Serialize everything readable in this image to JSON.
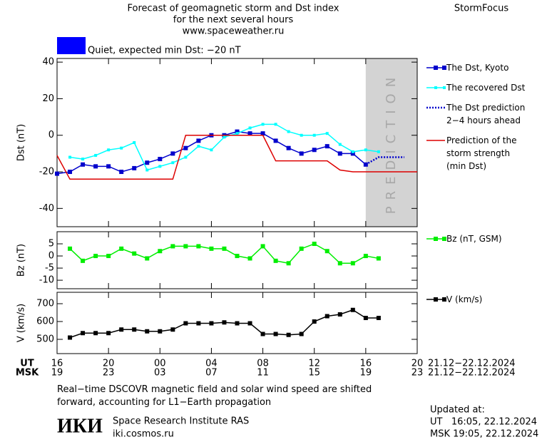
{
  "header": {
    "title_lines": [
      "Forecast of geomagnetic storm and Dst index",
      "for the next several hours",
      "www.spaceweather.ru"
    ],
    "brand": "StormFocus",
    "status": {
      "color": "#0000ff",
      "text": "Quiet, expected min Dst: −20 nT"
    }
  },
  "chart_data": [
    {
      "type": "line",
      "ylabel": "Dst (nT)",
      "ylim": [
        -50,
        42
      ],
      "yticks": [
        40,
        20,
        0,
        -20,
        -40
      ],
      "shade": {
        "from": 24,
        "to": 28,
        "label": "PREDICTION",
        "color": "#d3d3d3"
      },
      "series": [
        {
          "name": "The Dst, Kyoto",
          "color": "#0000cc",
          "marker": "square",
          "x": [
            0,
            1,
            2,
            3,
            4,
            5,
            6,
            7,
            8,
            9,
            10,
            11,
            12,
            13,
            14,
            15,
            16,
            17,
            18,
            19,
            20,
            21,
            22,
            23,
            24
          ],
          "values": [
            -21,
            -20,
            -16,
            -17,
            -17,
            -20,
            -18,
            -15,
            -13,
            -10,
            -7,
            -3,
            0,
            0,
            2,
            1,
            1,
            -3,
            -7,
            -10,
            -8,
            -6,
            -10,
            -10,
            -16
          ]
        },
        {
          "name": "The recovered Dst",
          "color": "#00ffff",
          "marker": "small-square",
          "x": [
            1,
            2,
            3,
            4,
            5,
            6,
            7,
            8,
            9,
            10,
            11,
            12,
            13,
            14,
            15,
            16,
            17,
            18,
            19,
            20,
            21,
            22,
            23,
            24,
            25
          ],
          "values": [
            -12,
            -13,
            -11,
            -8,
            -7,
            -4,
            -19,
            -17,
            -15,
            -12,
            -6,
            -8,
            -1,
            1,
            4,
            6,
            6,
            2,
            0,
            0,
            1,
            -5,
            -9,
            -8,
            -9
          ]
        },
        {
          "name": "The Dst prediction\n2−4 hours ahead",
          "color": "#0000cc",
          "dash": "dotted",
          "x": [
            24,
            25,
            26,
            27
          ],
          "values": [
            -16,
            -12,
            -12,
            -12
          ]
        },
        {
          "name": "Prediction of the\nstorm strength\n(min Dst)",
          "color": "#dd0000",
          "x": [
            0,
            1,
            9,
            10,
            16,
            17,
            21,
            22,
            23,
            28
          ],
          "values": [
            -11,
            -24,
            -24,
            0,
            0,
            -14,
            -14,
            -19,
            -20,
            -20
          ]
        }
      ]
    },
    {
      "type": "line",
      "ylabel": "Bz (nT)",
      "ylim": [
        -13.5,
        10
      ],
      "yticks": [
        5,
        0,
        -5,
        -10
      ],
      "series": [
        {
          "name": "Bz (nT, GSM)",
          "color": "#00ee00",
          "marker": "square",
          "x": [
            1,
            2,
            3,
            4,
            5,
            6,
            7,
            8,
            9,
            10,
            11,
            12,
            13,
            14,
            15,
            16,
            17,
            18,
            19,
            20,
            21,
            22,
            23,
            24,
            25
          ],
          "values": [
            3,
            -2,
            0,
            0,
            3,
            1,
            -1,
            2,
            4,
            4,
            4,
            3,
            3,
            0,
            -1,
            4,
            -2,
            -3,
            3,
            5,
            2,
            -3,
            -3,
            0,
            -1
          ]
        }
      ]
    },
    {
      "type": "line",
      "ylabel": "V (km/s)",
      "ylim": [
        420,
        764
      ],
      "yticks": [
        700,
        600,
        500
      ],
      "xlim": [
        0,
        28
      ],
      "xticks": [
        {
          "value": 0,
          "label": "16"
        },
        {
          "value": 4,
          "label": "20"
        },
        {
          "value": 8,
          "label": "00"
        },
        {
          "value": 12,
          "label": "04"
        },
        {
          "value": 16,
          "label": "08"
        },
        {
          "value": 20,
          "label": "12"
        },
        {
          "value": 24,
          "label": "16"
        },
        {
          "value": 28,
          "label": "20"
        }
      ],
      "series": [
        {
          "name": "V (km/s)",
          "color": "#000000",
          "marker": "square",
          "x": [
            1,
            2,
            3,
            4,
            5,
            6,
            7,
            8,
            9,
            10,
            11,
            12,
            13,
            14,
            15,
            16,
            17,
            18,
            19,
            20,
            21,
            22,
            23,
            24,
            25
          ],
          "values": [
            510,
            535,
            535,
            535,
            555,
            555,
            545,
            545,
            555,
            590,
            590,
            590,
            595,
            590,
            590,
            530,
            530,
            525,
            530,
            600,
            630,
            640,
            665,
            620,
            620
          ]
        }
      ]
    }
  ],
  "time_axis": {
    "ut_label": "UT",
    "msk_label": "MSK",
    "msk_ticks": [
      "19",
      "23",
      "03",
      "07",
      "11",
      "15",
      "19",
      "23"
    ],
    "ut_range": "21.12−22.12.2024",
    "msk_range": "21.12−22.12.2024"
  },
  "footer": {
    "note": "Real−time DSCOVR magnetic field and solar wind speed are shifted\nforward, accounting for L1−Earth propagation",
    "logo": "ИКИ",
    "institute": "Space Research Institute RAS",
    "site": "iki.cosmos.ru",
    "updated_title": "Updated at:",
    "updated_ut": "UT   16:05, 22.12.2024",
    "updated_msk": "MSK 19:05, 22.12.2024"
  }
}
